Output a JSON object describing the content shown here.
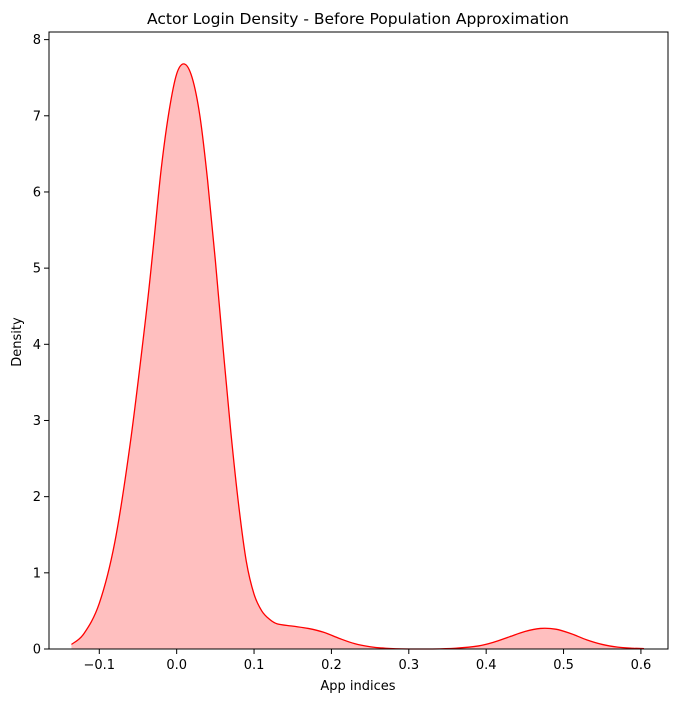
{
  "chart_data": {
    "type": "area",
    "title": "Actor Login Density - Before Population Approximation",
    "xlabel": "App indices",
    "ylabel": "Density",
    "xlim": [
      -0.165,
      0.635
    ],
    "ylim": [
      0,
      8.1
    ],
    "x_ticks": [
      {
        "value": -0.1,
        "label": "−0.1"
      },
      {
        "value": 0.0,
        "label": "0.0"
      },
      {
        "value": 0.1,
        "label": "0.1"
      },
      {
        "value": 0.2,
        "label": "0.2"
      },
      {
        "value": 0.3,
        "label": "0.3"
      },
      {
        "value": 0.4,
        "label": "0.4"
      },
      {
        "value": 0.5,
        "label": "0.5"
      },
      {
        "value": 0.6,
        "label": "0.6"
      }
    ],
    "y_ticks": [
      {
        "value": 0,
        "label": "0"
      },
      {
        "value": 1,
        "label": "1"
      },
      {
        "value": 2,
        "label": "2"
      },
      {
        "value": 3,
        "label": "3"
      },
      {
        "value": 4,
        "label": "4"
      },
      {
        "value": 5,
        "label": "5"
      },
      {
        "value": 6,
        "label": "6"
      },
      {
        "value": 7,
        "label": "7"
      },
      {
        "value": 8,
        "label": "8"
      }
    ],
    "grid": false,
    "legend": "none",
    "series": [
      {
        "line_color": "#ff0000",
        "fill_color": "#ffbfbf",
        "x": [
          -0.136,
          -0.12,
          -0.1,
          -0.08,
          -0.06,
          -0.04,
          -0.03,
          -0.02,
          -0.01,
          0.0,
          0.01,
          0.02,
          0.03,
          0.04,
          0.05,
          0.06,
          0.07,
          0.08,
          0.09,
          0.1,
          0.11,
          0.12,
          0.13,
          0.15,
          0.17,
          0.19,
          0.21,
          0.23,
          0.25,
          0.27,
          0.3,
          0.33,
          0.36,
          0.39,
          0.41,
          0.43,
          0.45,
          0.47,
          0.49,
          0.51,
          0.53,
          0.55,
          0.57,
          0.59,
          0.604
        ],
        "y": [
          0.06,
          0.2,
          0.6,
          1.4,
          2.7,
          4.35,
          5.3,
          6.3,
          7.05,
          7.55,
          7.68,
          7.5,
          7.0,
          6.15,
          5.1,
          3.95,
          2.85,
          1.9,
          1.15,
          0.72,
          0.5,
          0.39,
          0.33,
          0.3,
          0.27,
          0.22,
          0.14,
          0.07,
          0.03,
          0.01,
          0.0,
          0.0,
          0.01,
          0.04,
          0.09,
          0.16,
          0.23,
          0.27,
          0.26,
          0.2,
          0.12,
          0.06,
          0.025,
          0.01,
          0.005
        ]
      }
    ]
  }
}
